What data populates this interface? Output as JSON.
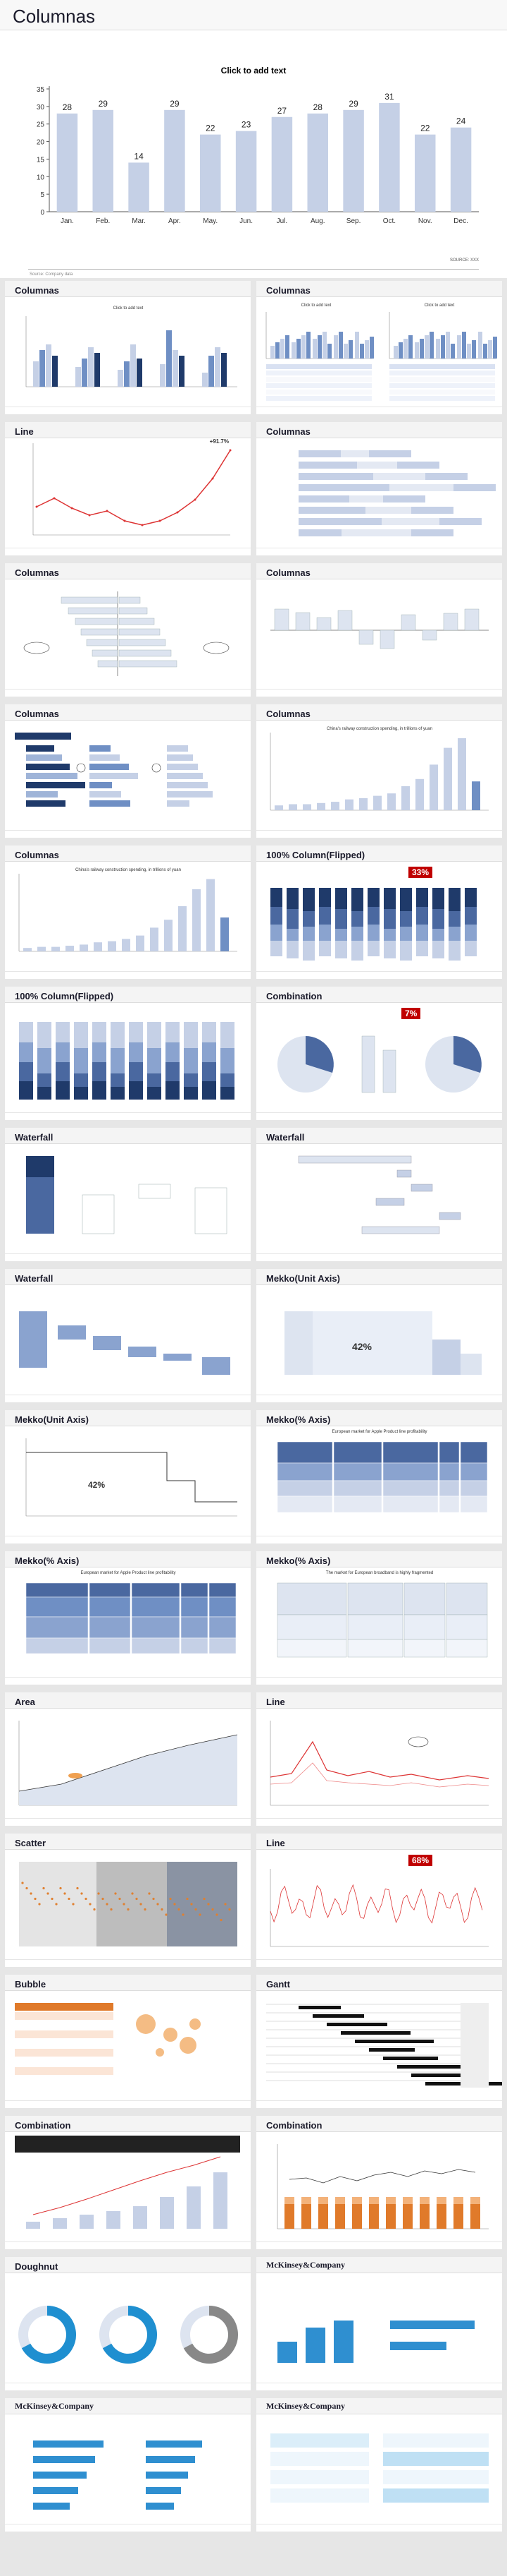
{
  "main": {
    "title": "Columnas",
    "subtitle": "Click to add text",
    "footer_source": "Source: Company data",
    "page_no": "SOURCE: XXX",
    "chart_data": {
      "type": "bar",
      "categories": [
        "Jan.",
        "Feb.",
        "Mar.",
        "Apr.",
        "May.",
        "Jun.",
        "Jul.",
        "Aug.",
        "Sep.",
        "Oct.",
        "Nov.",
        "Dec."
      ],
      "values": [
        28,
        29,
        14,
        29,
        22,
        23,
        27,
        28,
        29,
        31,
        22,
        24
      ],
      "ylim": [
        0,
        35
      ],
      "yticks": [
        0,
        5,
        10,
        15,
        20,
        25,
        30,
        35
      ],
      "title": "Click to add text"
    }
  },
  "thumbs": [
    {
      "title": "Columnas",
      "caption": "Click to add text"
    },
    {
      "title": "Columnas",
      "caption": "Click to add text"
    },
    {
      "title": "Line",
      "caption": "+91.7%"
    },
    {
      "title": "Columnas",
      "caption": ""
    },
    {
      "title": "Columnas",
      "caption": ""
    },
    {
      "title": "Columnas",
      "caption": ""
    },
    {
      "title": "Columnas",
      "caption": ""
    },
    {
      "title": "Columnas",
      "caption": "China's railway construction spending, in trillions of yuan"
    },
    {
      "title": "Columnas",
      "caption": "China's railway construction spending, in trillions of yuan"
    },
    {
      "title": "100% Column(Flipped)",
      "caption": "33%"
    },
    {
      "title": "100% Column(Flipped)",
      "caption": ""
    },
    {
      "title": "Combination",
      "caption": "7%"
    },
    {
      "title": "Waterfall",
      "caption": ""
    },
    {
      "title": "Waterfall",
      "caption": ""
    },
    {
      "title": "Waterfall",
      "caption": ""
    },
    {
      "title": "Mekko(Unit Axis)",
      "caption": "42%"
    },
    {
      "title": "Mekko(Unit Axis)",
      "caption": "42%"
    },
    {
      "title": "Mekko(% Axis)",
      "caption": "European market for Apple Product line profitability"
    },
    {
      "title": "Mekko(% Axis)",
      "caption": "European market for Apple Product line profitability"
    },
    {
      "title": "Mekko(% Axis)",
      "caption": "The market for European broadband is highly fragmented"
    },
    {
      "title": "Area",
      "caption": ""
    },
    {
      "title": "Line",
      "caption": ""
    },
    {
      "title": "Scatter",
      "caption": ""
    },
    {
      "title": "Line",
      "caption": "68%"
    },
    {
      "title": "Bubble",
      "caption": ""
    },
    {
      "title": "Gantt",
      "caption": ""
    },
    {
      "title": "Combination",
      "caption": ""
    },
    {
      "title": "Combination",
      "caption": ""
    },
    {
      "title": "Doughnut",
      "caption": ""
    },
    {
      "title": "McKinsey&Company",
      "caption": ""
    },
    {
      "title": "McKinsey&Company",
      "caption": ""
    },
    {
      "title": "McKinsey&Company",
      "caption": ""
    }
  ],
  "colors": {
    "bar": "#c5d0e6",
    "dark": "#1f3a6a",
    "mid": "#6f8fc4",
    "red": "#c00000",
    "line": "#d33"
  }
}
